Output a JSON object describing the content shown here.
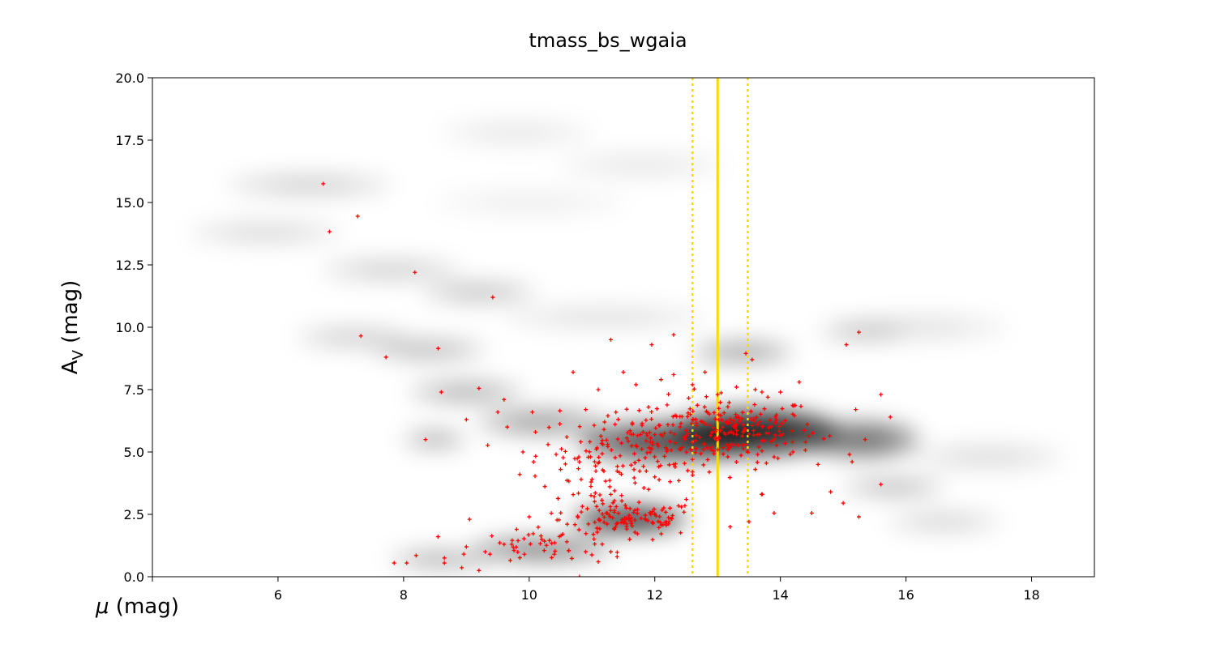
{
  "chart_data": {
    "type": "scatter",
    "title": "tmass_bs_wgaia",
    "xlabel": "μ (mag)",
    "ylabel_main": "A",
    "ylabel_sub": "V",
    "ylabel_rest": " (mag)",
    "xlim": [
      4.0,
      19.0
    ],
    "ylim": [
      0.0,
      20.0
    ],
    "x_ticks": [
      {
        "value": 4,
        "label": ""
      },
      {
        "value": 6,
        "label": "6"
      },
      {
        "value": 8,
        "label": "8"
      },
      {
        "value": 10,
        "label": "10"
      },
      {
        "value": 12,
        "label": "12"
      },
      {
        "value": 14,
        "label": "14"
      },
      {
        "value": 16,
        "label": "16"
      },
      {
        "value": 18,
        "label": "18"
      }
    ],
    "y_ticks": [
      {
        "value": 0,
        "label": "0.0"
      },
      {
        "value": 2.5,
        "label": "2.5"
      },
      {
        "value": 5,
        "label": "5.0"
      },
      {
        "value": 7.5,
        "label": "7.5"
      },
      {
        "value": 10,
        "label": "10.0"
      },
      {
        "value": 12.5,
        "label": "12.5"
      },
      {
        "value": 15,
        "label": "15.0"
      },
      {
        "value": 17.5,
        "label": "17.5"
      },
      {
        "value": 20,
        "label": "20.0"
      }
    ],
    "grid": false,
    "background_density": {
      "colormap": "greys",
      "blobs": [
        {
          "x": 13.6,
          "y": 5.8,
          "sx": 1.3,
          "sy": 0.9,
          "a": 0.95
        },
        {
          "x": 12.2,
          "y": 5.4,
          "sx": 1.4,
          "sy": 0.8,
          "a": 0.7
        },
        {
          "x": 11.6,
          "y": 2.3,
          "sx": 0.9,
          "sy": 0.5,
          "a": 0.9
        },
        {
          "x": 10.2,
          "y": 1.1,
          "sx": 1.1,
          "sy": 0.4,
          "a": 0.55
        },
        {
          "x": 8.6,
          "y": 0.7,
          "sx": 0.8,
          "sy": 0.3,
          "a": 0.35
        },
        {
          "x": 15.3,
          "y": 5.5,
          "sx": 0.9,
          "sy": 0.7,
          "a": 0.55
        },
        {
          "x": 15.8,
          "y": 3.6,
          "sx": 0.8,
          "sy": 0.3,
          "a": 0.3
        },
        {
          "x": 16.6,
          "y": 2.2,
          "sx": 0.9,
          "sy": 0.4,
          "a": 0.15
        },
        {
          "x": 10.2,
          "y": 6.2,
          "sx": 1.0,
          "sy": 0.5,
          "a": 0.35
        },
        {
          "x": 9.0,
          "y": 7.4,
          "sx": 0.9,
          "sy": 0.4,
          "a": 0.3
        },
        {
          "x": 8.5,
          "y": 5.5,
          "sx": 0.5,
          "sy": 0.3,
          "a": 0.35
        },
        {
          "x": 13.4,
          "y": 9.0,
          "sx": 0.8,
          "sy": 0.4,
          "a": 0.35
        },
        {
          "x": 15.3,
          "y": 9.8,
          "sx": 0.7,
          "sy": 0.3,
          "a": 0.2
        },
        {
          "x": 9.2,
          "y": 11.4,
          "sx": 0.9,
          "sy": 0.4,
          "a": 0.22
        },
        {
          "x": 8.4,
          "y": 9.1,
          "sx": 0.9,
          "sy": 0.4,
          "a": 0.25
        },
        {
          "x": 7.2,
          "y": 9.6,
          "sx": 0.9,
          "sy": 0.4,
          "a": 0.18
        },
        {
          "x": 7.8,
          "y": 12.3,
          "sx": 1.1,
          "sy": 0.4,
          "a": 0.18
        },
        {
          "x": 6.5,
          "y": 15.7,
          "sx": 1.3,
          "sy": 0.4,
          "a": 0.18
        },
        {
          "x": 5.8,
          "y": 13.8,
          "sx": 1.2,
          "sy": 0.4,
          "a": 0.14
        },
        {
          "x": 9.8,
          "y": 17.8,
          "sx": 1.2,
          "sy": 0.5,
          "a": 0.08
        },
        {
          "x": 11.8,
          "y": 16.5,
          "sx": 1.3,
          "sy": 0.5,
          "a": 0.08
        },
        {
          "x": 10.0,
          "y": 15.0,
          "sx": 1.5,
          "sy": 0.5,
          "a": 0.06
        },
        {
          "x": 11.2,
          "y": 10.4,
          "sx": 1.6,
          "sy": 0.4,
          "a": 0.12
        },
        {
          "x": 16.2,
          "y": 10.0,
          "sx": 1.4,
          "sy": 0.5,
          "a": 0.1
        },
        {
          "x": 17.3,
          "y": 4.8,
          "sx": 1.2,
          "sy": 0.5,
          "a": 0.12
        }
      ]
    },
    "series": [
      {
        "marker": "+",
        "color": "#ff0000",
        "points": [
          [
            6.72,
            15.75
          ],
          [
            6.82,
            13.83
          ],
          [
            7.27,
            14.45
          ],
          [
            7.32,
            9.65
          ],
          [
            7.72,
            8.8
          ],
          [
            8.18,
            12.2
          ],
          [
            8.55,
            9.15
          ],
          [
            8.6,
            7.4
          ],
          [
            8.35,
            5.5
          ],
          [
            9.42,
            11.2
          ],
          [
            7.85,
            0.55
          ],
          [
            8.05,
            0.55
          ],
          [
            8.2,
            0.85
          ],
          [
            8.65,
            0.75
          ],
          [
            8.65,
            0.55
          ],
          [
            9.0,
            6.3
          ],
          [
            9.05,
            2.3
          ],
          [
            9.2,
            7.55
          ],
          [
            9.2,
            0.25
          ],
          [
            9.5,
            6.6
          ],
          [
            9.6,
            7.1
          ],
          [
            9.65,
            6.0
          ],
          [
            9.85,
            4.1
          ],
          [
            9.9,
            5.0
          ],
          [
            10.05,
            6.6
          ],
          [
            10.7,
            8.2
          ],
          [
            11.3,
            9.5
          ],
          [
            11.95,
            9.3
          ],
          [
            12.3,
            9.7
          ],
          [
            10.8,
            0.0
          ],
          [
            13.45,
            8.95
          ],
          [
            13.55,
            8.7
          ],
          [
            14.3,
            7.8
          ],
          [
            14.6,
            4.5
          ],
          [
            14.8,
            3.4
          ],
          [
            15.05,
            9.3
          ],
          [
            15.25,
            9.8
          ],
          [
            15.0,
            2.95
          ],
          [
            15.25,
            2.4
          ],
          [
            15.6,
            3.7
          ],
          [
            15.6,
            7.3
          ],
          [
            15.75,
            6.4
          ],
          [
            15.2,
            6.7
          ],
          [
            15.35,
            5.5
          ],
          [
            15.1,
            4.9
          ],
          [
            14.5,
            2.55
          ],
          [
            13.9,
            2.55
          ],
          [
            13.5,
            2.2
          ],
          [
            13.2,
            2.0
          ],
          [
            13.7,
            3.3
          ],
          [
            9.0,
            1.2
          ],
          [
            9.3,
            1.0
          ],
          [
            9.6,
            1.3
          ],
          [
            9.8,
            1.9
          ],
          [
            10.0,
            2.4
          ],
          [
            10.2,
            1.5
          ],
          [
            10.4,
            0.9
          ],
          [
            10.6,
            1.4
          ],
          [
            10.9,
            1.0
          ],
          [
            11.1,
            0.6
          ],
          [
            11.4,
            0.8
          ],
          [
            11.6,
            1.5
          ],
          [
            11.3,
            1.0
          ],
          [
            10.1,
            5.8
          ],
          [
            10.3,
            5.3
          ],
          [
            10.5,
            4.3
          ],
          [
            10.6,
            5.6
          ],
          [
            10.8,
            4.6
          ],
          [
            10.9,
            6.7
          ],
          [
            11.0,
            3.9
          ],
          [
            11.1,
            7.5
          ],
          [
            11.2,
            6.2
          ],
          [
            11.3,
            3.3
          ],
          [
            11.5,
            8.2
          ],
          [
            11.7,
            7.7
          ],
          [
            11.9,
            6.8
          ],
          [
            12.1,
            7.9
          ],
          [
            12.3,
            8.1
          ],
          [
            12.6,
            7.7
          ],
          [
            12.8,
            8.2
          ],
          [
            13.0,
            7.3
          ],
          [
            13.3,
            7.6
          ],
          [
            13.6,
            7.5
          ],
          [
            13.8,
            7.2
          ],
          [
            14.0,
            7.4
          ],
          [
            13.9,
            4.8
          ],
          [
            13.6,
            4.3
          ],
          [
            13.3,
            4.6
          ],
          [
            14.2,
            5.0
          ],
          [
            14.4,
            5.4
          ],
          [
            12.3,
            4.5
          ],
          [
            12.6,
            4.2
          ],
          [
            12.0,
            4.0
          ],
          [
            11.9,
            3.5
          ],
          [
            12.5,
            3.1
          ]
        ]
      }
    ],
    "clusters": [
      {
        "x": 13.1,
        "y": 5.9,
        "sx": 0.75,
        "sy": 0.65,
        "n": 210
      },
      {
        "x": 11.8,
        "y": 5.1,
        "sx": 0.85,
        "sy": 0.7,
        "n": 110
      },
      {
        "x": 11.6,
        "y": 2.3,
        "sx": 0.55,
        "sy": 0.35,
        "n": 110
      },
      {
        "x": 10.4,
        "y": 1.25,
        "sx": 0.65,
        "sy": 0.35,
        "n": 45
      },
      {
        "x": 11.1,
        "y": 4.2,
        "sx": 0.45,
        "sy": 0.8,
        "n": 45
      }
    ],
    "vlines": [
      {
        "x": 13.0,
        "style": "solid",
        "color": "#ffd700"
      },
      {
        "x": 12.6,
        "style": "dotted",
        "color": "#ffd700"
      },
      {
        "x": 13.48,
        "style": "dotted",
        "color": "#ffd700"
      }
    ]
  }
}
